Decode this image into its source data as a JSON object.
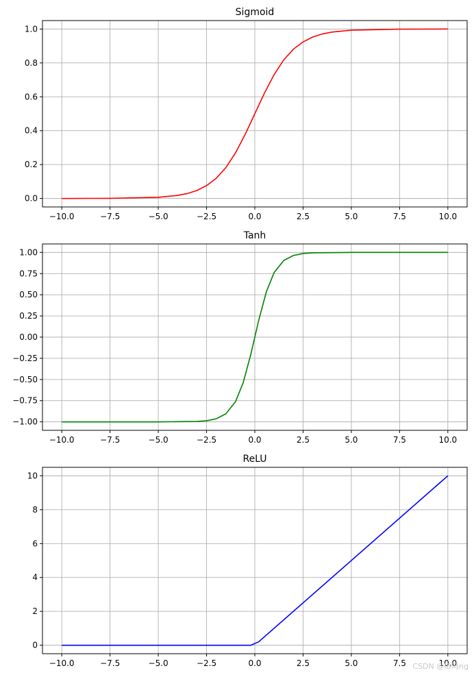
{
  "chart_data": [
    {
      "type": "line",
      "title": "Sigmoid",
      "color": "#ff0000",
      "xlim": [
        -11,
        11
      ],
      "ylim": [
        -0.05,
        1.05
      ],
      "xticks": [
        -10.0,
        -7.5,
        -5.0,
        -2.5,
        0.0,
        2.5,
        5.0,
        7.5,
        10.0
      ],
      "xtick_labels": [
        "−10.0",
        "−7.5",
        "−5.0",
        "−2.5",
        "0.0",
        "2.5",
        "5.0",
        "7.5",
        "10.0"
      ],
      "yticks": [
        0.0,
        0.2,
        0.4,
        0.6,
        0.8,
        1.0
      ],
      "ytick_labels": [
        "0.0",
        "0.2",
        "0.4",
        "0.6",
        "0.8",
        "1.0"
      ],
      "grid": true,
      "x": [
        -10.0,
        -7.5,
        -5.0,
        -4.0,
        -3.5,
        -3.0,
        -2.5,
        -2.0,
        -1.5,
        -1.0,
        -0.5,
        0.0,
        0.5,
        1.0,
        1.5,
        2.0,
        2.5,
        3.0,
        3.5,
        4.0,
        5.0,
        7.5,
        10.0
      ],
      "y": [
        0.0,
        0.001,
        0.007,
        0.018,
        0.029,
        0.047,
        0.076,
        0.119,
        0.182,
        0.269,
        0.378,
        0.5,
        0.622,
        0.731,
        0.818,
        0.881,
        0.924,
        0.953,
        0.971,
        0.982,
        0.993,
        0.999,
        1.0
      ]
    },
    {
      "type": "line",
      "title": "Tanh",
      "color": "#008000",
      "xlim": [
        -11,
        11
      ],
      "ylim": [
        -1.1,
        1.1
      ],
      "xticks": [
        -10.0,
        -7.5,
        -5.0,
        -2.5,
        0.0,
        2.5,
        5.0,
        7.5,
        10.0
      ],
      "xtick_labels": [
        "−10.0",
        "−7.5",
        "−5.0",
        "−2.5",
        "0.0",
        "2.5",
        "5.0",
        "7.5",
        "10.0"
      ],
      "yticks": [
        -1.0,
        -0.75,
        -0.5,
        -0.25,
        0.0,
        0.25,
        0.5,
        0.75,
        1.0
      ],
      "ytick_labels": [
        "−1.00",
        "−0.75",
        "−0.50",
        "−0.25",
        "0.00",
        "0.25",
        "0.50",
        "0.75",
        "1.00"
      ],
      "grid": true,
      "x": [
        -10.0,
        -5.0,
        -3.0,
        -2.5,
        -2.0,
        -1.5,
        -1.0,
        -0.6,
        -0.2,
        0.0,
        0.2,
        0.6,
        1.0,
        1.5,
        2.0,
        2.5,
        3.0,
        5.0,
        10.0
      ],
      "y": [
        -1.0,
        -1.0,
        -0.995,
        -0.987,
        -0.964,
        -0.905,
        -0.762,
        -0.537,
        -0.197,
        0.0,
        0.197,
        0.537,
        0.762,
        0.905,
        0.964,
        0.987,
        0.995,
        1.0,
        1.0
      ]
    },
    {
      "type": "line",
      "title": "ReLU",
      "color": "#0000ff",
      "xlim": [
        -11,
        11
      ],
      "ylim": [
        -0.5,
        10.5
      ],
      "xticks": [
        -10.0,
        -7.5,
        -5.0,
        -2.5,
        0.0,
        2.5,
        5.0,
        7.5,
        10.0
      ],
      "xtick_labels": [
        "−10.0",
        "−7.5",
        "−5.0",
        "−2.5",
        "0.0",
        "2.5",
        "5.0",
        "7.5",
        "10.0"
      ],
      "yticks": [
        0,
        2,
        4,
        6,
        8,
        10
      ],
      "ytick_labels": [
        "0",
        "2",
        "4",
        "6",
        "8",
        "10"
      ],
      "grid": true,
      "x": [
        -10.0,
        -0.2,
        0.2,
        10.0
      ],
      "y": [
        0.0,
        0.0,
        0.2,
        10.0
      ]
    }
  ],
  "watermark": "CSDN @IB吗ng"
}
